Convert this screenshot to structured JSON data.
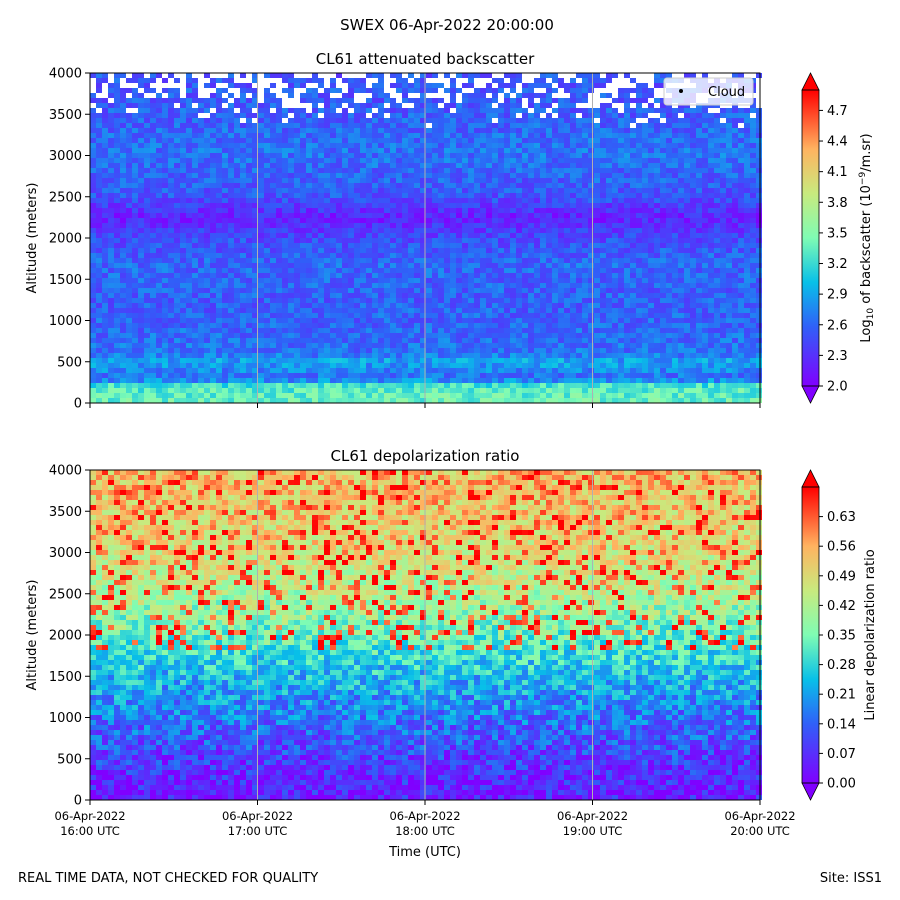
{
  "figure": {
    "suptitle": "SWEX 06-Apr-2022 20:00:00",
    "footer_left": "REAL TIME DATA, NOT CHECKED FOR QUALITY",
    "footer_right": "Site: ISS1"
  },
  "chart_data": [
    {
      "type": "heatmap",
      "title": "CL61 attenuated backscatter",
      "ylabel": "Altitude (meters)",
      "xlabel": "",
      "ylim": [
        0,
        4000
      ],
      "yticks": [
        "0",
        "500",
        "1000",
        "1500",
        "2000",
        "2500",
        "3000",
        "3500",
        "4000"
      ],
      "xlim": [
        "06-Apr-2022 16:00 UTC",
        "06-Apr-2022 20:00 UTC"
      ],
      "xtick_labels": [],
      "grid": "vertical",
      "legend": {
        "placement": "top-right",
        "entries": [
          "Cloud"
        ]
      },
      "colorbar": {
        "label_main": "Log",
        "label_sub": "10",
        "label_mid": " of backscatter (10",
        "label_sup": "−9",
        "label_end": "/m.sr)",
        "range": [
          2.0,
          4.9
        ],
        "ticks": [
          "2.0",
          "2.3",
          "2.6",
          "2.9",
          "3.2",
          "3.5",
          "3.8",
          "4.1",
          "4.4",
          "4.7"
        ],
        "colormap": "rainbow"
      },
      "profile": [
        {
          "altitude": 0,
          "value": 3.4
        },
        {
          "altitude": 200,
          "value": 3.3
        },
        {
          "altitude": 300,
          "value": 2.6
        },
        {
          "altitude": 500,
          "value": 2.9
        },
        {
          "altitude": 600,
          "value": 2.65
        },
        {
          "altitude": 1200,
          "value": 2.55
        },
        {
          "altitude": 1700,
          "value": 2.6
        },
        {
          "altitude": 2000,
          "value": 2.45
        },
        {
          "altitude": 2250,
          "value": 2.2
        },
        {
          "altitude": 2500,
          "value": 2.5
        },
        {
          "altitude": 3000,
          "value": 2.65
        },
        {
          "altitude": 3500,
          "value": 2.55
        },
        {
          "altitude": 4000,
          "value": 2.5
        }
      ]
    },
    {
      "type": "heatmap",
      "title": "CL61 depolarization ratio",
      "ylabel": "Altitude (meters)",
      "xlabel": "Time (UTC)",
      "ylim": [
        0,
        4000
      ],
      "yticks": [
        "0",
        "500",
        "1000",
        "1500",
        "2000",
        "2500",
        "3000",
        "3500",
        "4000"
      ],
      "xlim": [
        "06-Apr-2022 16:00 UTC",
        "06-Apr-2022 20:00 UTC"
      ],
      "xtick_labels": [
        [
          "06-Apr-2022",
          "16:00 UTC"
        ],
        [
          "06-Apr-2022",
          "17:00 UTC"
        ],
        [
          "06-Apr-2022",
          "18:00 UTC"
        ],
        [
          "06-Apr-2022",
          "19:00 UTC"
        ],
        [
          "06-Apr-2022",
          "20:00 UTC"
        ]
      ],
      "grid": "vertical",
      "colorbar": {
        "label": "Linear depolarization ratio",
        "range": [
          0.0,
          0.7
        ],
        "ticks": [
          "0.00",
          "0.07",
          "0.14",
          "0.21",
          "0.28",
          "0.35",
          "0.42",
          "0.49",
          "0.56",
          "0.63"
        ],
        "colormap": "rainbow"
      },
      "profile": [
        {
          "altitude": 0,
          "value": 0.04
        },
        {
          "altitude": 300,
          "value": 0.06
        },
        {
          "altitude": 500,
          "value": 0.09
        },
        {
          "altitude": 1000,
          "value": 0.16
        },
        {
          "altitude": 1500,
          "value": 0.24
        },
        {
          "altitude": 2000,
          "value": 0.34
        },
        {
          "altitude": 2500,
          "value": 0.42
        },
        {
          "altitude": 3000,
          "value": 0.48
        },
        {
          "altitude": 3500,
          "value": 0.52
        },
        {
          "altitude": 4000,
          "value": 0.54
        }
      ]
    }
  ]
}
